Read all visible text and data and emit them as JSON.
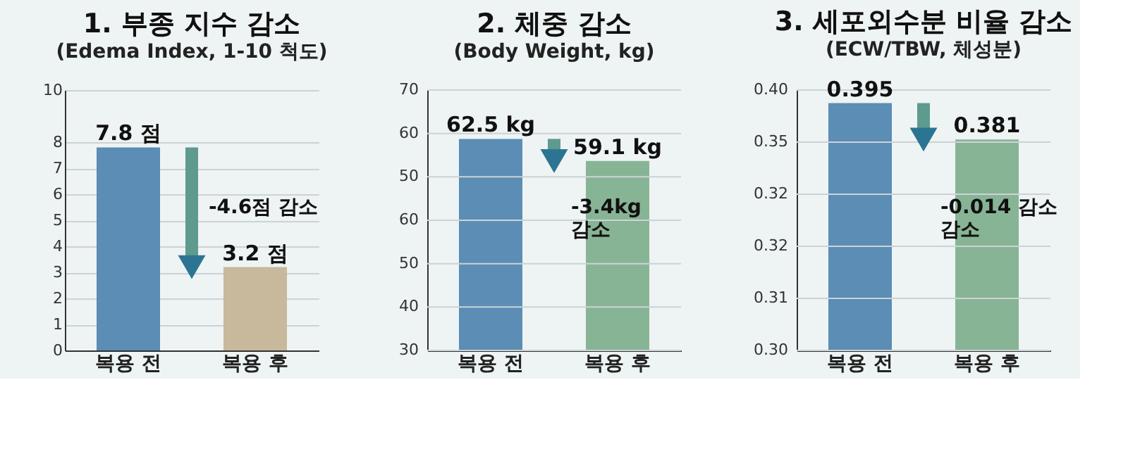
{
  "chart_data": [
    {
      "type": "bar",
      "title": "1. 부종 지수 감소",
      "subtitle": "(Edema Index, 1-10 척도)",
      "categories": [
        "복용 전",
        "복용 후"
      ],
      "values": [
        7.8,
        3.2
      ],
      "colors": [
        "#5b8db5",
        "#c8b89c"
      ],
      "value_labels": [
        "7.8 점",
        "3.2 점"
      ],
      "ylim": [
        0,
        10
      ],
      "yticks": [
        0,
        1,
        2,
        3,
        4,
        5,
        6,
        7,
        8,
        10
      ],
      "grid": "y",
      "annotations": [
        "-4.6점 감소"
      ]
    },
    {
      "type": "bar",
      "title": "2. 체중 감소",
      "subtitle": "(Body Weight, kg)",
      "categories": [
        "복용 전",
        "복용 후"
      ],
      "values": [
        62.5,
        59.1
      ],
      "ylim": [
        30,
        70
      ],
      "colors": [
        "#5b8db5",
        "#88b496"
      ],
      "value_labels": [
        "62.5 kg",
        "59.1 kg"
      ],
      "grid": "y",
      "annotations": [
        "-3.4kg\n감소",
        "70",
        "60",
        "50",
        "60",
        "50",
        "40",
        "30"
      ]
    },
    {
      "type": "bar",
      "title": "3. 세포외수분 비율 감소",
      "subtitle": "(ECW/TBW, 체성분)",
      "categories": [
        "복용 전",
        "복용 후"
      ],
      "values": [
        0.395,
        0.381
      ],
      "ylim": [
        0.3,
        0.4
      ],
      "colors": [
        "#5b8db5",
        "#88b496"
      ],
      "value_labels": [
        "0.395",
        "0.381"
      ],
      "grid": "y",
      "annotations": [
        "-0.014 감소\n감소",
        "0.40",
        "0.35",
        "0.32",
        "0.32",
        "0.31",
        "0.30"
      ]
    }
  ]
}
